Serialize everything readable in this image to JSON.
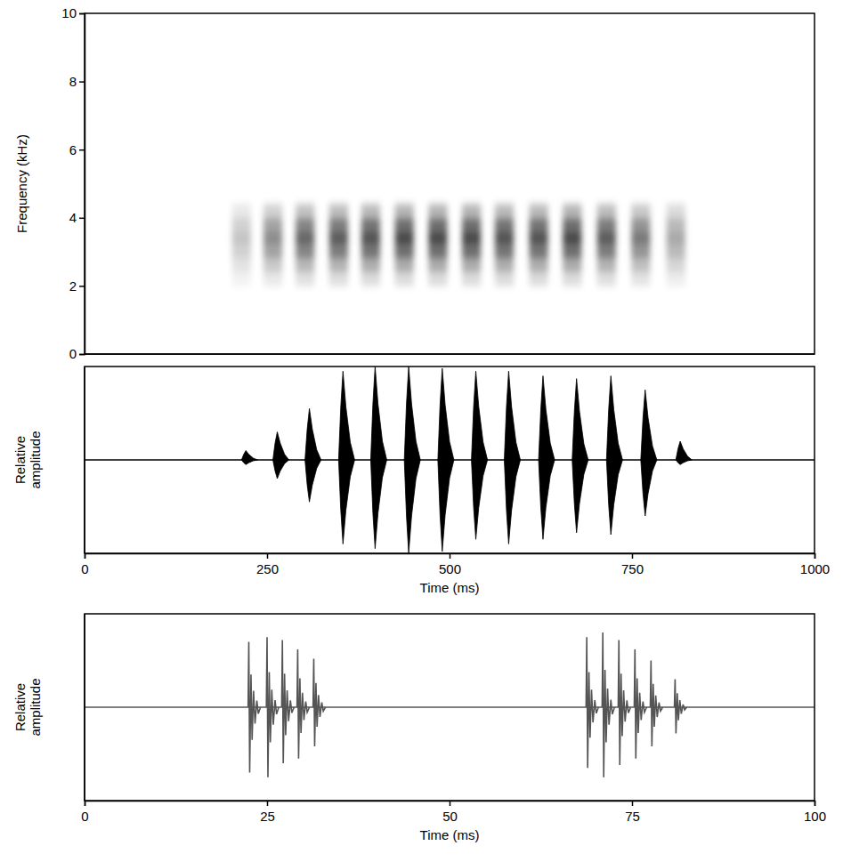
{
  "chart_data": [
    {
      "type": "spectrogram",
      "x": [
        215,
        258,
        302,
        348,
        392,
        438,
        484,
        530,
        575,
        622,
        668,
        715,
        762,
        810
      ],
      "y": [
        2.2,
        2.6,
        3.0,
        3.4,
        3.8,
        4.2
      ],
      "cells": [
        [
          0.05,
          0.09,
          0.12,
          0.13,
          0.14,
          0.14,
          0.14,
          0.14,
          0.14,
          0.14,
          0.14,
          0.13,
          0.11,
          0.07
        ],
        [
          0.11,
          0.21,
          0.28,
          0.3,
          0.32,
          0.33,
          0.33,
          0.33,
          0.32,
          0.32,
          0.33,
          0.3,
          0.25,
          0.16
        ],
        [
          0.18,
          0.36,
          0.48,
          0.51,
          0.54,
          0.57,
          0.57,
          0.57,
          0.54,
          0.54,
          0.57,
          0.51,
          0.42,
          0.27
        ],
        [
          0.23,
          0.45,
          0.6,
          0.64,
          0.68,
          0.71,
          0.71,
          0.71,
          0.68,
          0.68,
          0.71,
          0.64,
          0.53,
          0.34
        ],
        [
          0.18,
          0.36,
          0.48,
          0.51,
          0.54,
          0.57,
          0.57,
          0.57,
          0.54,
          0.54,
          0.57,
          0.51,
          0.42,
          0.27
        ],
        [
          0.09,
          0.18,
          0.24,
          0.26,
          0.27,
          0.29,
          0.29,
          0.29,
          0.27,
          0.27,
          0.29,
          0.26,
          0.21,
          0.14
        ]
      ],
      "xlim": [
        0,
        1000
      ],
      "ylim": [
        0,
        10
      ],
      "yticks": [
        0,
        2,
        4,
        6,
        8,
        10
      ],
      "ylabel": "Frequency (kHz)",
      "tick_labels": "y",
      "color": "#000000"
    },
    {
      "type": "oscillogram",
      "x": [
        215,
        258,
        302,
        348,
        392,
        438,
        484,
        530,
        575,
        622,
        668,
        715,
        762,
        810
      ],
      "values": [
        0.1,
        0.3,
        0.55,
        0.95,
        1.0,
        1.0,
        0.98,
        0.95,
        0.95,
        0.9,
        0.87,
        0.9,
        0.75,
        0.2
      ],
      "lower": [
        -0.05,
        -0.2,
        -0.45,
        -0.9,
        -0.95,
        -1.0,
        -0.98,
        -0.85,
        -0.9,
        -0.85,
        -0.78,
        -0.8,
        -0.6,
        -0.05
      ],
      "xlim": [
        0,
        1000
      ],
      "xticks": [
        0,
        250,
        500,
        750,
        1000
      ],
      "ylim": [
        -1,
        1
      ],
      "xlabel": "Time (ms)",
      "ylabel": "Relative amplitude",
      "tick_labels": "x",
      "color": "#000000"
    },
    {
      "type": "oscillogram",
      "x": [
        22.5,
        25.0,
        27.1,
        29.2,
        31.4,
        68.8,
        71.0,
        73.2,
        75.4,
        77.6,
        80.9
      ],
      "values": [
        0.7,
        0.75,
        0.72,
        0.62,
        0.52,
        0.75,
        0.8,
        0.72,
        0.62,
        0.5,
        0.3
      ],
      "lower": [
        -0.7,
        -0.75,
        -0.6,
        -0.55,
        -0.42,
        -0.65,
        -0.75,
        -0.62,
        -0.55,
        -0.42,
        -0.28
      ],
      "xlim": [
        0,
        100
      ],
      "xticks": [
        0,
        25,
        50,
        75,
        100
      ],
      "ylim": [
        -1,
        1
      ],
      "xlabel": "Time (ms)",
      "ylabel": "Relative amplitude",
      "tick_labels": "x",
      "color": "#555555"
    }
  ]
}
